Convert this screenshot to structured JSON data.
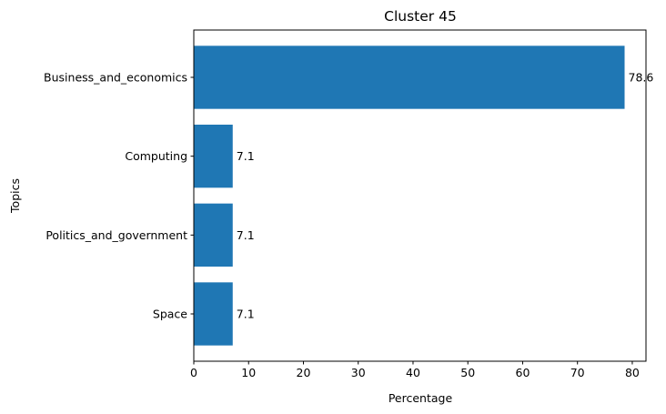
{
  "chart_data": {
    "type": "bar",
    "orientation": "horizontal",
    "title": "Cluster 45",
    "xlabel": "Percentage",
    "ylabel": "Topics",
    "categories": [
      "Business_and_economics",
      "Computing",
      "Politics_and_government",
      "Space"
    ],
    "values": [
      78.6,
      7.1,
      7.1,
      7.1
    ],
    "data_labels": [
      "78.6",
      "7.1",
      "7.1",
      "7.1"
    ],
    "xlim": [
      0,
      82.5
    ],
    "xticks": [
      0,
      10,
      20,
      30,
      40,
      50,
      60,
      70,
      80
    ],
    "grid": false,
    "legend": "none",
    "bar_color": "#1f77b4"
  }
}
